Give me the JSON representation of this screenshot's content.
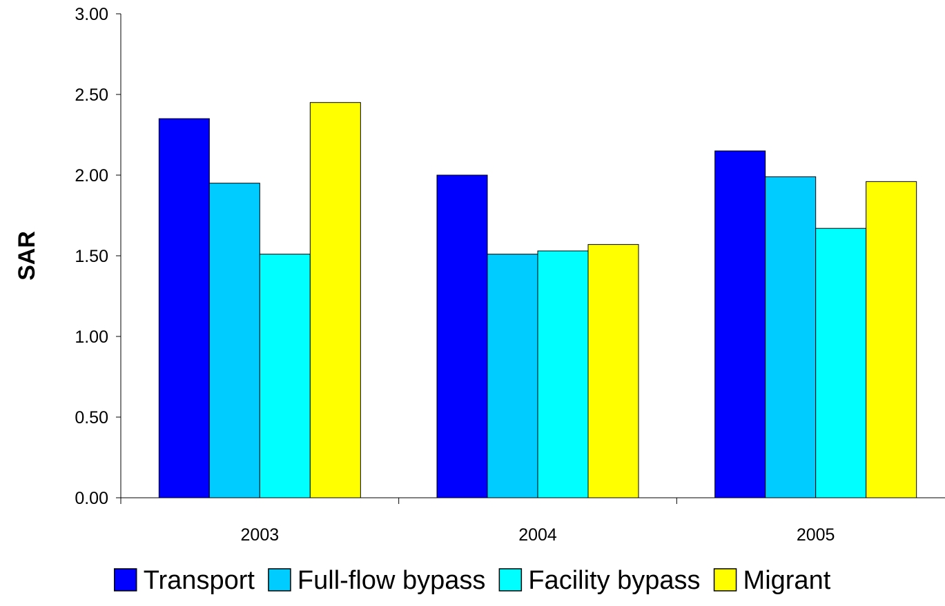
{
  "chart_data": {
    "type": "bar",
    "title": "",
    "xlabel": "",
    "ylabel": "SAR",
    "ylim": [
      0,
      3.0
    ],
    "yticks": [
      "0.00",
      "0.50",
      "1.00",
      "1.50",
      "2.00",
      "2.50",
      "3.00"
    ],
    "categories": [
      "2003",
      "2004",
      "2005"
    ],
    "grid": false,
    "legend_position": "bottom",
    "series": [
      {
        "name": "Transport",
        "color": "#0000FF",
        "values": [
          2.35,
          2.0,
          2.15
        ]
      },
      {
        "name": "Full-flow bypass",
        "color": "#00CCFF",
        "values": [
          1.95,
          1.51,
          1.99
        ]
      },
      {
        "name": "Facility bypass",
        "color": "#00FFFF",
        "values": [
          1.51,
          1.53,
          1.67
        ]
      },
      {
        "name": "Migrant",
        "color": "#FFFF00",
        "values": [
          2.45,
          1.57,
          1.96
        ]
      }
    ]
  }
}
